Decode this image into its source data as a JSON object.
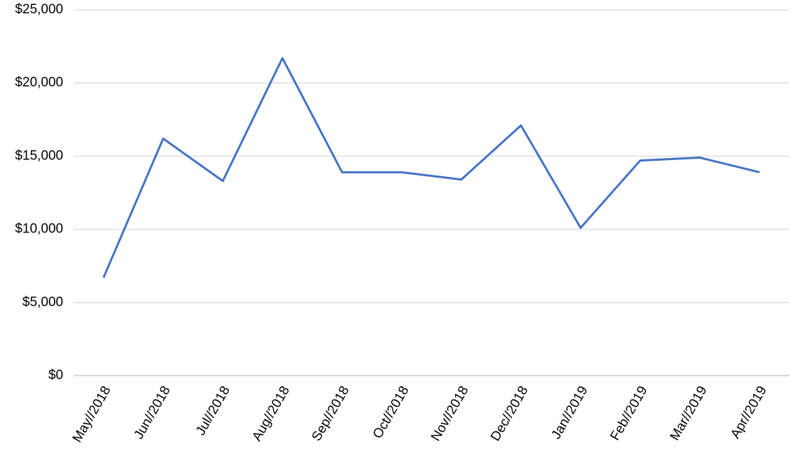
{
  "chart_data": {
    "type": "line",
    "categories": [
      "May//2018",
      "Jun//2018",
      "Jul//2018",
      "Aug//2018",
      "Sep//2018",
      "Oct//2018",
      "Nov//2018",
      "Dec//2018",
      "Jan//2019",
      "Feb//2019",
      "Mar//2019",
      "Apr//2019"
    ],
    "values": [
      6700,
      16200,
      13300,
      21700,
      13900,
      13900,
      13400,
      17100,
      10100,
      14700,
      14900,
      13900
    ],
    "color": "#4472c4",
    "ylim": [
      0,
      25000
    ],
    "yticks": [
      {
        "value": 0,
        "label": "$0"
      },
      {
        "value": 5000,
        "label": "$5,000"
      },
      {
        "value": 10000,
        "label": "$10,000"
      },
      {
        "value": 15000,
        "label": "$15,000"
      },
      {
        "value": 20000,
        "label": "$20,000"
      },
      {
        "value": 25000,
        "label": "$25,000"
      }
    ],
    "grid": true
  }
}
